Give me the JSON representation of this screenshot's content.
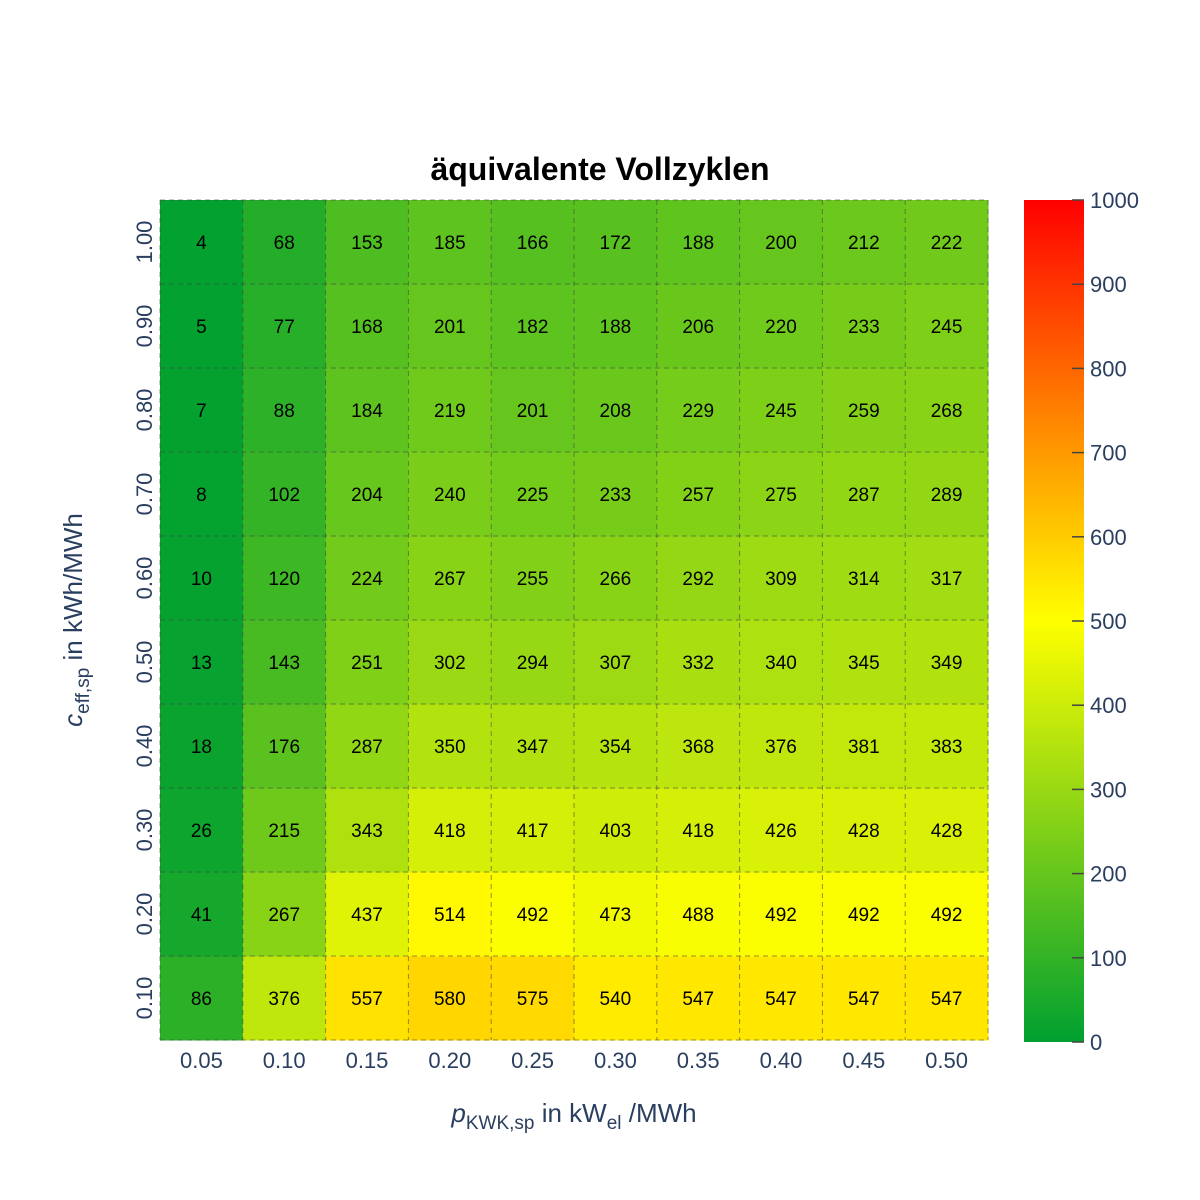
{
  "chart_data": {
    "type": "heatmap",
    "title": "äquivalente Vollzyklen",
    "x": [
      "0.05",
      "0.10",
      "0.15",
      "0.20",
      "0.25",
      "0.30",
      "0.35",
      "0.40",
      "0.45",
      "0.50"
    ],
    "y": [
      "0.10",
      "0.20",
      "0.30",
      "0.40",
      "0.50",
      "0.60",
      "0.70",
      "0.80",
      "0.90",
      "1.00"
    ],
    "z": [
      [
        86,
        376,
        557,
        580,
        575,
        540,
        547,
        547,
        547,
        547
      ],
      [
        41,
        267,
        437,
        514,
        492,
        473,
        488,
        492,
        492,
        492
      ],
      [
        26,
        215,
        343,
        418,
        417,
        403,
        418,
        426,
        428,
        428
      ],
      [
        18,
        176,
        287,
        350,
        347,
        354,
        368,
        376,
        381,
        383
      ],
      [
        13,
        143,
        251,
        302,
        294,
        307,
        332,
        340,
        345,
        349
      ],
      [
        10,
        120,
        224,
        267,
        255,
        266,
        292,
        309,
        314,
        317
      ],
      [
        8,
        102,
        204,
        240,
        225,
        233,
        257,
        275,
        287,
        289
      ],
      [
        7,
        88,
        184,
        219,
        201,
        208,
        229,
        245,
        259,
        268
      ],
      [
        5,
        77,
        168,
        201,
        182,
        188,
        206,
        220,
        233,
        245
      ],
      [
        4,
        68,
        153,
        185,
        166,
        172,
        188,
        200,
        212,
        222
      ]
    ],
    "xlabel": {
      "main": "p",
      "sub": "KWK,sp",
      "mid": " in kW",
      "sub2": "el",
      "tail": " /MWh"
    },
    "ylabel": {
      "main": "c",
      "sub": "eff,sp",
      "tail": " in kWh/MWh"
    },
    "colorbar": {
      "range": [
        0,
        1000
      ],
      "ticks": [
        "0",
        "100",
        "200",
        "300",
        "400",
        "500",
        "600",
        "700",
        "800",
        "900",
        "1000"
      ],
      "colorscale": [
        [
          0,
          "#00a030"
        ],
        [
          0.5,
          "#ffff00"
        ],
        [
          1,
          "#ff0000"
        ]
      ]
    },
    "grid": true
  }
}
